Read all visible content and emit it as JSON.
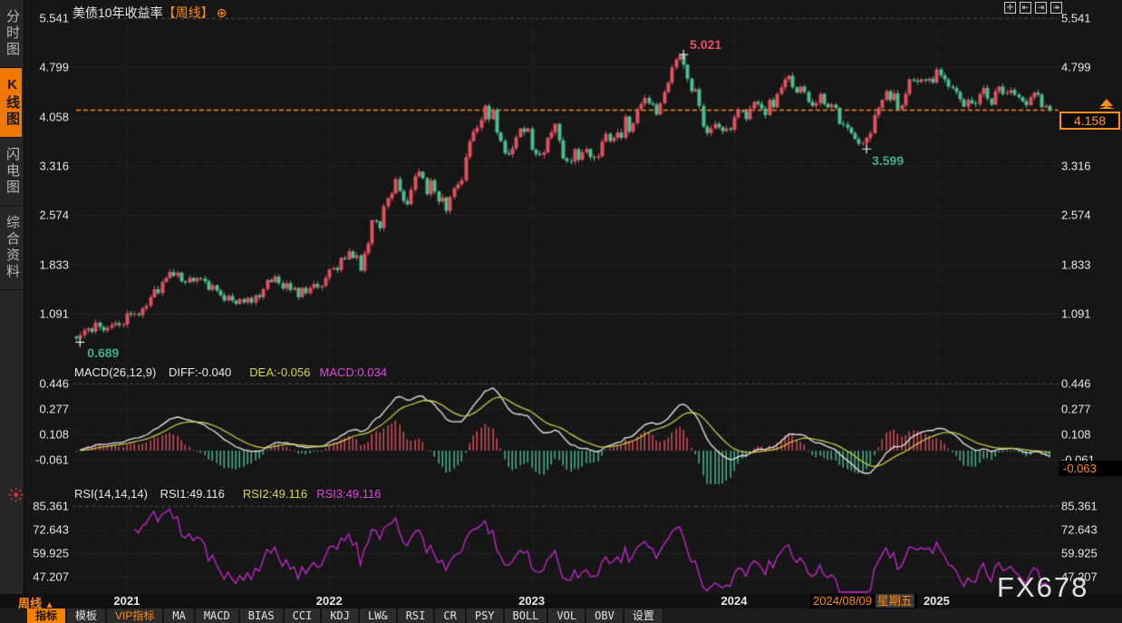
{
  "window": {
    "watermark": "FX678"
  },
  "sidebar": {
    "items": [
      {
        "label": "分时图",
        "active": false
      },
      {
        "label": "K线图",
        "active": true
      },
      {
        "label": "闪电图",
        "active": false
      },
      {
        "label": "综合资料",
        "active": false
      }
    ]
  },
  "title_bar": {
    "instrument": "美债10年收益率",
    "timeframe_tag": "【周线】",
    "add_icon_glyph": "⊕"
  },
  "top_icons": [
    {
      "name": "pan-tool-icon",
      "glyph": "✛"
    },
    {
      "name": "compress-scale-icon",
      "glyph": "⇤"
    },
    {
      "name": "expand-scale-icon",
      "glyph": "⇥"
    },
    {
      "name": "scroll-right-icon",
      "glyph": "↠"
    }
  ],
  "main_panel": {
    "last_price": "4.158",
    "annotations": {
      "peak": "5.021",
      "trough_2024": "3.599",
      "start_low": "0.689"
    }
  },
  "macd_panel": {
    "title": "MACD(26,12,9)",
    "diff_label": "DIFF:-0.040",
    "dea_label": "DEA:-0.056",
    "macd_label": "MACD:0.034",
    "last_value_box": "-0.063"
  },
  "rsi_panel": {
    "title": "RSI(14,14,14)",
    "rsi1_label": "RSI1:49.116",
    "rsi2_label": "RSI2:49.116",
    "rsi3_label": "RSI3:49.116"
  },
  "xaxis": {
    "timeframe_label": "周线",
    "timeframe_arrow": "▲",
    "date_label": "2024/08/09",
    "weekday_label": "星期五"
  },
  "toolbar": {
    "items": [
      {
        "label": "指标",
        "active": true,
        "cjk": true
      },
      {
        "label": "模板",
        "cjk": true
      },
      {
        "label": "VIP指标",
        "vip": true,
        "cjk": true
      },
      {
        "label": "MA"
      },
      {
        "label": "MACD"
      },
      {
        "label": "BIAS"
      },
      {
        "label": "CCI"
      },
      {
        "label": "KDJ"
      },
      {
        "label": "LW&"
      },
      {
        "label": "RSI"
      },
      {
        "label": "CR"
      },
      {
        "label": "PSY"
      },
      {
        "label": "BOLL"
      },
      {
        "label": "VOL"
      },
      {
        "label": "OBV"
      },
      {
        "label": "设置",
        "cjk": true
      }
    ]
  },
  "colors": {
    "up_candle": "#e2505e",
    "down_candle": "#4cbd8e",
    "accent_orange": "#ff8b1a",
    "diff_line": "#e8e8e8",
    "dea_line": "#d6d648",
    "macd_value": "#dd4add",
    "rsi_line": "#cb28d2",
    "annotation_red": "#e84f63",
    "annotation_green": "#3fae80",
    "grid": "#3a3a3a",
    "background": "#161616"
  },
  "chart_data": [
    {
      "type": "candlestick",
      "title": "美债10年收益率 周线",
      "yticks": [
        5.541,
        4.799,
        4.058,
        3.316,
        2.574,
        1.833,
        1.091
      ],
      "ylim": [
        0.35,
        5.7
      ],
      "x_year_labels": [
        "2021",
        "2022",
        "2023",
        "2024",
        "2025"
      ],
      "year_start_week_indices": [
        13,
        65,
        117,
        169,
        221
      ],
      "peak_high": 5.021,
      "trough_low_2024": 3.599,
      "start_low": 0.689,
      "last_price": 4.158,
      "weekly_close": [
        0.72,
        0.77,
        0.84,
        0.87,
        0.82,
        0.96,
        0.89,
        0.84,
        0.88,
        0.92,
        0.95,
        0.92,
        0.93,
        1.1,
        1.08,
        1.09,
        1.07,
        1.17,
        1.21,
        1.34,
        1.46,
        1.4,
        1.57,
        1.63,
        1.72,
        1.66,
        1.71,
        1.58,
        1.56,
        1.63,
        1.58,
        1.63,
        1.62,
        1.58,
        1.45,
        1.52,
        1.44,
        1.37,
        1.29,
        1.36,
        1.29,
        1.24,
        1.31,
        1.26,
        1.33,
        1.26,
        1.37,
        1.34,
        1.46,
        1.6,
        1.57,
        1.65,
        1.55,
        1.47,
        1.55,
        1.45,
        1.48,
        1.34,
        1.48,
        1.4,
        1.48,
        1.54,
        1.49,
        1.51,
        1.63,
        1.76,
        1.78,
        1.75,
        1.93,
        1.91,
        2.03,
        1.93,
        1.97,
        1.74,
        2.0,
        2.15,
        2.5,
        2.48,
        2.38,
        2.71,
        2.83,
        2.9,
        3.12,
        2.94,
        2.79,
        2.74,
        2.96,
        3.16,
        3.23,
        3.13,
        2.89,
        3.1,
        2.93,
        2.78,
        2.84,
        2.64,
        2.85,
        2.98,
        3.04,
        3.1,
        3.45,
        3.69,
        3.83,
        3.89,
        4.01,
        4.22,
        4.02,
        4.16,
        3.82,
        3.69,
        3.51,
        3.49,
        3.58,
        3.75,
        3.88,
        3.83,
        3.88,
        3.56,
        3.5,
        3.48,
        3.52,
        3.74,
        3.82,
        3.95,
        3.7,
        3.43,
        3.39,
        3.38,
        3.57,
        3.41,
        3.52,
        3.57,
        3.45,
        3.44,
        3.46,
        3.68,
        3.8,
        3.69,
        3.74,
        3.82,
        3.74,
        4.06,
        3.83,
        3.96,
        4.17,
        4.25,
        4.34,
        4.26,
        4.24,
        4.09,
        4.26,
        4.43,
        4.57,
        4.8,
        4.92,
        4.98,
        4.84,
        4.63,
        4.44,
        4.47,
        4.22,
        3.91,
        3.81,
        3.88,
        3.95,
        3.9,
        3.84,
        3.88,
        3.86,
        4.05,
        4.15,
        4.14,
        4.02,
        4.18,
        4.28,
        4.25,
        4.18,
        4.08,
        4.31,
        4.2,
        4.4,
        4.5,
        4.62,
        4.67,
        4.5,
        4.42,
        4.51,
        4.43,
        4.28,
        4.22,
        4.26,
        4.4,
        4.25,
        4.2,
        4.24,
        4.19,
        3.95,
        3.94,
        3.89,
        3.81,
        3.72,
        3.65,
        3.66,
        3.74,
        3.81,
        4.08,
        4.19,
        4.31,
        4.44,
        4.31,
        4.41,
        4.17,
        4.23,
        4.4,
        4.62,
        4.6,
        4.58,
        4.62,
        4.6,
        4.63,
        4.57,
        4.77,
        4.68,
        4.62,
        4.51,
        4.49,
        4.43,
        4.32,
        4.21,
        4.31,
        4.26,
        4.25,
        4.4,
        4.49,
        4.33,
        4.24,
        4.44,
        4.51,
        4.4,
        4.42,
        4.46,
        4.39,
        4.35,
        4.29,
        4.23,
        4.35,
        4.42,
        4.39,
        4.2,
        4.22,
        4.158
      ],
      "up_color": "#e2505e",
      "down_color": "#4cbd8e"
    },
    {
      "type": "macd_histogram_and_lines",
      "params": [
        26,
        12,
        9
      ],
      "diff": -0.04,
      "dea": -0.056,
      "macd": 0.034,
      "yticks": [
        0.446,
        0.277,
        0.108,
        -0.061
      ],
      "last_histogram_value": -0.063,
      "derived": "computed from weekly_close series above"
    },
    {
      "type": "rsi_line",
      "params": [
        14,
        14,
        14
      ],
      "rsi1": 49.116,
      "rsi2": 49.116,
      "rsi3": 49.116,
      "yticks": [
        85.361,
        72.643,
        59.925,
        47.207
      ],
      "derived": "computed from weekly_close series above"
    }
  ]
}
